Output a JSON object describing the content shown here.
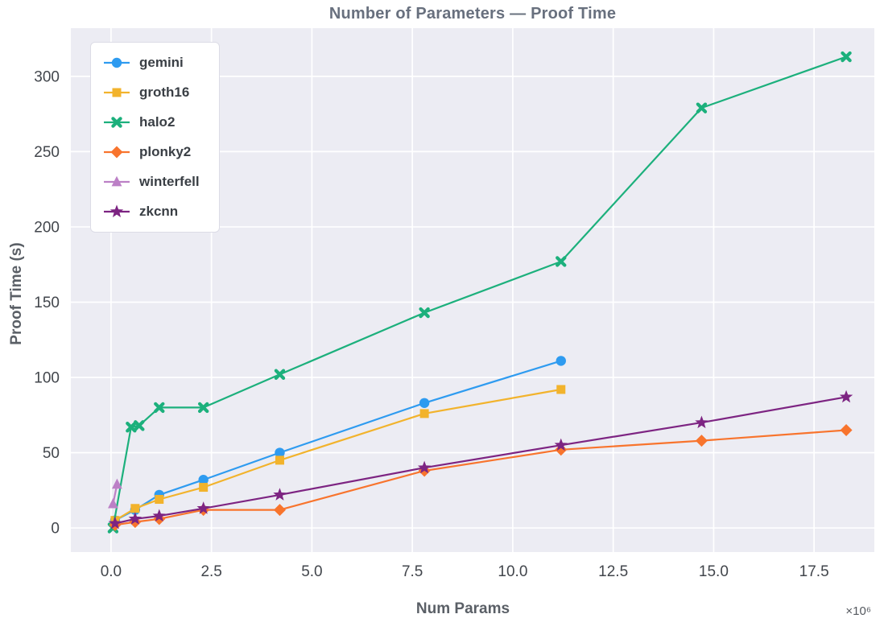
{
  "chart_data": {
    "type": "line",
    "title": "Number of Parameters — Proof Time",
    "xlabel": "Num Params",
    "ylabel": "Proof Time (s)",
    "x_offset_label": "×10⁶",
    "xlim": [
      -1.0,
      19.0
    ],
    "ylim": [
      -16,
      332
    ],
    "xticks": [
      0.0,
      2.5,
      5.0,
      7.5,
      10.0,
      12.5,
      15.0,
      17.5
    ],
    "yticks": [
      0,
      50,
      100,
      150,
      200,
      250,
      300
    ],
    "grid": true,
    "plot_background": "#ECECF3",
    "gridline_color": "#FFFFFF",
    "legend_position": "upper-left",
    "series": [
      {
        "name": "gemini",
        "color": "#2E9BF0",
        "marker": "circle",
        "x": [
          0.1,
          0.6,
          1.2,
          2.3,
          4.2,
          7.8,
          11.2
        ],
        "y": [
          5,
          12,
          22,
          32,
          50,
          83,
          111
        ]
      },
      {
        "name": "groth16",
        "color": "#F2B32C",
        "marker": "square",
        "x": [
          0.1,
          0.6,
          1.2,
          2.3,
          4.2,
          7.8,
          11.2
        ],
        "y": [
          5,
          13,
          19,
          27,
          45,
          76,
          92
        ]
      },
      {
        "name": "halo2",
        "color": "#1CB07C",
        "marker": "x",
        "x": [
          0.05,
          0.5,
          0.7,
          1.2,
          2.3,
          4.2,
          7.8,
          11.2,
          14.7,
          18.3
        ],
        "y": [
          0,
          67,
          68,
          80,
          80,
          102,
          143,
          177,
          279,
          313
        ]
      },
      {
        "name": "plonky2",
        "color": "#F8742D",
        "marker": "diamond",
        "x": [
          0.1,
          0.6,
          1.2,
          2.3,
          4.2,
          7.8,
          11.2,
          14.7,
          18.3
        ],
        "y": [
          2,
          4,
          6,
          12,
          12,
          38,
          52,
          58,
          65
        ]
      },
      {
        "name": "winterfell",
        "color": "#BC80C6",
        "marker": "triangle-up",
        "x": [
          0.05,
          0.15
        ],
        "y": [
          16,
          29
        ]
      },
      {
        "name": "zkcnn",
        "color": "#7D2482",
        "marker": "star",
        "x": [
          0.1,
          0.6,
          1.2,
          2.3,
          4.2,
          7.8,
          11.2,
          14.7,
          18.3
        ],
        "y": [
          3,
          6,
          8,
          13,
          22,
          40,
          55,
          70,
          87
        ]
      }
    ]
  }
}
